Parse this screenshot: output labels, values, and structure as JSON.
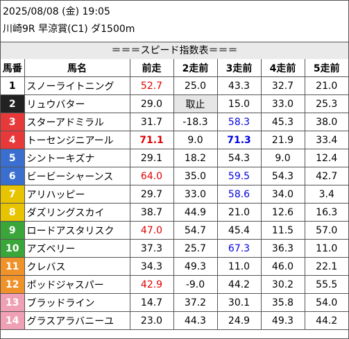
{
  "header": {
    "line1": "2025/08/08 (金) 19:05",
    "line2": "川崎9R 早涼賞(C1) ダ1500m"
  },
  "caption": "＝＝＝スピード指数表＝＝＝",
  "columns": [
    "馬番",
    "馬名",
    "前走",
    "2走前",
    "3走前",
    "4走前",
    "5走前"
  ],
  "frame_colors": {
    "1": "#ffffff",
    "2": "#222222",
    "3": "#e8393a",
    "4": "#e8393a",
    "5": "#3a6fd0",
    "6": "#3a6fd0",
    "7": "#e8c400",
    "8": "#e8c400",
    "9": "#3aa63a",
    "10": "#3aa63a",
    "11": "#f0922a",
    "12": "#f0922a",
    "13": "#f0a0b4",
    "14": "#f0a0b4"
  },
  "rows": [
    {
      "num": "1",
      "name": "スノーライトニング",
      "cells": [
        {
          "v": "52.7",
          "c": "red"
        },
        {
          "v": "25.0"
        },
        {
          "v": "43.3"
        },
        {
          "v": "32.7"
        },
        {
          "v": "21.0"
        }
      ]
    },
    {
      "num": "2",
      "name": "リュウバター",
      "cells": [
        {
          "v": "29.0"
        },
        {
          "v": "取止",
          "s": true
        },
        {
          "v": "15.0"
        },
        {
          "v": "33.0"
        },
        {
          "v": "25.3"
        }
      ]
    },
    {
      "num": "3",
      "name": "スターアドミラル",
      "cells": [
        {
          "v": "31.7"
        },
        {
          "v": "-18.3"
        },
        {
          "v": "58.3",
          "c": "blue"
        },
        {
          "v": "45.3"
        },
        {
          "v": "38.0"
        }
      ]
    },
    {
      "num": "4",
      "name": "トーセンジニアール",
      "cells": [
        {
          "v": "71.1",
          "c": "red",
          "b": true
        },
        {
          "v": "9.0"
        },
        {
          "v": "71.3",
          "c": "blue",
          "b": true
        },
        {
          "v": "21.9"
        },
        {
          "v": "33.4"
        }
      ]
    },
    {
      "num": "5",
      "name": "シントーキズナ",
      "cells": [
        {
          "v": "29.1"
        },
        {
          "v": "18.2"
        },
        {
          "v": "54.3"
        },
        {
          "v": "9.0"
        },
        {
          "v": "12.4"
        }
      ]
    },
    {
      "num": "6",
      "name": "ビービーシャーンス",
      "cells": [
        {
          "v": "64.0",
          "c": "red"
        },
        {
          "v": "35.0"
        },
        {
          "v": "59.5",
          "c": "blue"
        },
        {
          "v": "54.3"
        },
        {
          "v": "42.7"
        }
      ]
    },
    {
      "num": "7",
      "name": "アリハッピー",
      "cells": [
        {
          "v": "29.7"
        },
        {
          "v": "33.0"
        },
        {
          "v": "58.6",
          "c": "blue"
        },
        {
          "v": "34.0"
        },
        {
          "v": "3.4"
        }
      ]
    },
    {
      "num": "8",
      "name": "ダズリングスカイ",
      "cells": [
        {
          "v": "38.7"
        },
        {
          "v": "44.9"
        },
        {
          "v": "21.0"
        },
        {
          "v": "12.6"
        },
        {
          "v": "16.3"
        }
      ]
    },
    {
      "num": "9",
      "name": "ロードアスタリスク",
      "cells": [
        {
          "v": "47.0",
          "c": "red"
        },
        {
          "v": "54.7"
        },
        {
          "v": "45.4"
        },
        {
          "v": "11.5"
        },
        {
          "v": "57.0"
        }
      ]
    },
    {
      "num": "10",
      "name": "アズベリー",
      "cells": [
        {
          "v": "37.3"
        },
        {
          "v": "25.7"
        },
        {
          "v": "67.3",
          "c": "blue"
        },
        {
          "v": "36.3"
        },
        {
          "v": "11.0"
        }
      ]
    },
    {
      "num": "11",
      "name": "クレバス",
      "cells": [
        {
          "v": "34.3"
        },
        {
          "v": "49.3"
        },
        {
          "v": "11.0"
        },
        {
          "v": "46.0"
        },
        {
          "v": "22.1"
        }
      ]
    },
    {
      "num": "12",
      "name": "ポッドジャスパー",
      "cells": [
        {
          "v": "42.9",
          "c": "red"
        },
        {
          "v": "-9.0"
        },
        {
          "v": "44.2"
        },
        {
          "v": "30.2"
        },
        {
          "v": "55.5"
        }
      ]
    },
    {
      "num": "13",
      "name": "ブラッドライン",
      "cells": [
        {
          "v": "14.7"
        },
        {
          "v": "37.2"
        },
        {
          "v": "30.1"
        },
        {
          "v": "35.8"
        },
        {
          "v": "54.0"
        }
      ]
    },
    {
      "num": "14",
      "name": "グラスアラバニーユ",
      "cells": [
        {
          "v": "23.0"
        },
        {
          "v": "44.3"
        },
        {
          "v": "24.9"
        },
        {
          "v": "49.3"
        },
        {
          "v": "44.2"
        }
      ]
    }
  ]
}
